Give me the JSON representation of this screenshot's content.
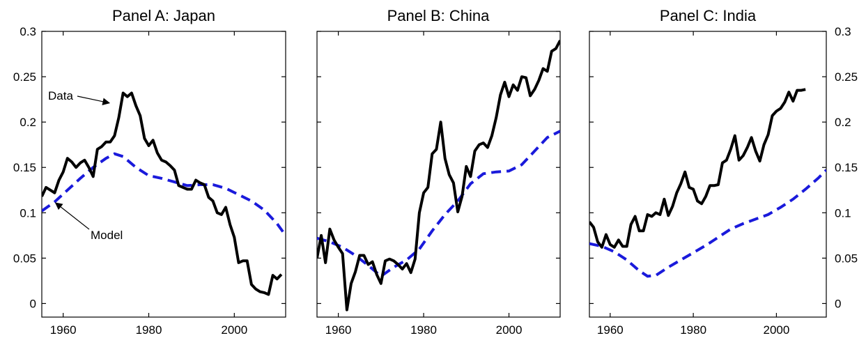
{
  "chart_data": [
    {
      "type": "line",
      "title": "Panel A: Japan",
      "xlim": [
        1955,
        2012
      ],
      "ylim": [
        -0.015,
        0.3
      ],
      "x_ticks": [
        1960,
        1980,
        2000
      ],
      "x_tick_labels": [
        "1960",
        "1980",
        "2000"
      ],
      "y_ticks": [
        0,
        0.05,
        0.1,
        0.15,
        0.2,
        0.25,
        0.3
      ],
      "y_tick_labels": [
        "0",
        "0.05",
        "0.1",
        "0.15",
        "0.2",
        "0.25",
        "0.3"
      ],
      "y_axis_side": "left",
      "annotations": [
        {
          "text": "Data",
          "series": "data"
        },
        {
          "text": "Model",
          "series": "model"
        }
      ],
      "series": [
        {
          "key": "data",
          "color": "#000000",
          "style": "solid",
          "x": [
            1955,
            1956,
            1957,
            1958,
            1959,
            1960,
            1961,
            1962,
            1963,
            1964,
            1965,
            1966,
            1967,
            1968,
            1969,
            1970,
            1971,
            1972,
            1973,
            1974,
            1975,
            1976,
            1977,
            1978,
            1979,
            1980,
            1981,
            1982,
            1983,
            1984,
            1985,
            1986,
            1987,
            1988,
            1989,
            1990,
            1991,
            1992,
            1993,
            1994,
            1995,
            1996,
            1997,
            1998,
            1999,
            2000,
            2001,
            2002,
            2003,
            2004,
            2005,
            2006,
            2007,
            2008,
            2009,
            2010,
            2011
          ],
          "y": [
            0.118,
            0.128,
            0.125,
            0.122,
            0.136,
            0.145,
            0.16,
            0.156,
            0.15,
            0.155,
            0.158,
            0.15,
            0.14,
            0.17,
            0.173,
            0.178,
            0.178,
            0.185,
            0.205,
            0.232,
            0.228,
            0.232,
            0.218,
            0.207,
            0.182,
            0.174,
            0.18,
            0.166,
            0.158,
            0.156,
            0.152,
            0.147,
            0.13,
            0.128,
            0.126,
            0.126,
            0.136,
            0.133,
            0.131,
            0.117,
            0.113,
            0.1,
            0.098,
            0.106,
            0.087,
            0.073,
            0.045,
            0.047,
            0.047,
            0.021,
            0.016,
            0.013,
            0.012,
            0.01,
            0.031,
            0.027,
            0.032
          ]
        },
        {
          "key": "model",
          "color": "#1a1adb",
          "style": "dashed",
          "x": [
            1955,
            1958,
            1961,
            1964,
            1967,
            1970,
            1972,
            1974,
            1977,
            1980,
            1983,
            1986,
            1989,
            1992,
            1995,
            1998,
            2001,
            2004,
            2007,
            2010,
            2012
          ],
          "y": [
            0.102,
            0.112,
            0.125,
            0.138,
            0.15,
            0.16,
            0.165,
            0.162,
            0.15,
            0.141,
            0.138,
            0.134,
            0.13,
            0.131,
            0.131,
            0.127,
            0.12,
            0.113,
            0.103,
            0.088,
            0.075
          ]
        }
      ]
    },
    {
      "type": "line",
      "title": "Panel B: China",
      "xlim": [
        1955,
        2012
      ],
      "ylim": [
        -0.015,
        0.3
      ],
      "x_ticks": [
        1960,
        1980,
        2000
      ],
      "x_tick_labels": [
        "1960",
        "1980",
        "2000"
      ],
      "y_ticks": [
        0,
        0.05,
        0.1,
        0.15,
        0.2,
        0.25,
        0.3
      ],
      "y_tick_labels": [],
      "y_axis_side": "none",
      "series": [
        {
          "key": "data",
          "color": "#000000",
          "style": "solid",
          "x": [
            1955,
            1956,
            1957,
            1958,
            1959,
            1960,
            1961,
            1962,
            1963,
            1964,
            1965,
            1966,
            1967,
            1968,
            1969,
            1970,
            1971,
            1972,
            1973,
            1974,
            1975,
            1976,
            1977,
            1978,
            1979,
            1980,
            1981,
            1982,
            1983,
            1984,
            1985,
            1986,
            1987,
            1988,
            1989,
            1990,
            1991,
            1992,
            1993,
            1994,
            1995,
            1996,
            1997,
            1998,
            1999,
            2000,
            2001,
            2002,
            2003,
            2004,
            2005,
            2006,
            2007,
            2008,
            2009,
            2010,
            2011,
            2012
          ],
          "y": [
            0.05,
            0.075,
            0.045,
            0.082,
            0.07,
            0.062,
            0.055,
            -0.007,
            0.022,
            0.035,
            0.053,
            0.053,
            0.043,
            0.046,
            0.032,
            0.022,
            0.047,
            0.049,
            0.047,
            0.043,
            0.038,
            0.044,
            0.034,
            0.049,
            0.1,
            0.122,
            0.128,
            0.165,
            0.17,
            0.2,
            0.16,
            0.142,
            0.133,
            0.101,
            0.118,
            0.151,
            0.14,
            0.168,
            0.175,
            0.177,
            0.172,
            0.185,
            0.205,
            0.23,
            0.244,
            0.228,
            0.241,
            0.235,
            0.25,
            0.249,
            0.229,
            0.236,
            0.246,
            0.259,
            0.256,
            0.278,
            0.281,
            0.29
          ]
        },
        {
          "key": "model",
          "color": "#1a1adb",
          "style": "dashed",
          "x": [
            1955,
            1958,
            1961,
            1964,
            1967,
            1970,
            1973,
            1976,
            1979,
            1982,
            1985,
            1988,
            1991,
            1994,
            1997,
            2000,
            2003,
            2006,
            2009,
            2012
          ],
          "y": [
            0.072,
            0.068,
            0.062,
            0.053,
            0.042,
            0.03,
            0.04,
            0.048,
            0.06,
            0.08,
            0.098,
            0.113,
            0.132,
            0.143,
            0.145,
            0.146,
            0.153,
            0.168,
            0.183,
            0.19
          ]
        }
      ]
    },
    {
      "type": "line",
      "title": "Panel C: India",
      "xlim": [
        1955,
        2012
      ],
      "ylim": [
        -0.015,
        0.3
      ],
      "x_ticks": [
        1960,
        1980,
        2000
      ],
      "x_tick_labels": [
        "1960",
        "1980",
        "2000"
      ],
      "y_ticks": [
        0,
        0.05,
        0.1,
        0.15,
        0.2,
        0.25,
        0.3
      ],
      "y_tick_labels": [
        "0",
        "0.05",
        "0.1",
        "0.15",
        "0.2",
        "0.25",
        "0.3"
      ],
      "y_axis_side": "right",
      "series": [
        {
          "key": "data",
          "color": "#000000",
          "style": "solid",
          "x": [
            1955,
            1956,
            1957,
            1958,
            1959,
            1960,
            1961,
            1962,
            1963,
            1964,
            1965,
            1966,
            1967,
            1968,
            1969,
            1970,
            1971,
            1972,
            1973,
            1974,
            1975,
            1976,
            1977,
            1978,
            1979,
            1980,
            1981,
            1982,
            1983,
            1984,
            1985,
            1986,
            1987,
            1988,
            1989,
            1990,
            1991,
            1992,
            1993,
            1994,
            1995,
            1996,
            1997,
            1998,
            1999,
            2000,
            2001,
            2002,
            2003,
            2004,
            2005,
            2006,
            2007
          ],
          "y": [
            0.09,
            0.084,
            0.068,
            0.062,
            0.076,
            0.065,
            0.062,
            0.07,
            0.063,
            0.063,
            0.087,
            0.096,
            0.08,
            0.08,
            0.098,
            0.096,
            0.1,
            0.098,
            0.115,
            0.097,
            0.107,
            0.122,
            0.132,
            0.145,
            0.128,
            0.126,
            0.113,
            0.11,
            0.118,
            0.13,
            0.13,
            0.131,
            0.155,
            0.158,
            0.17,
            0.185,
            0.158,
            0.163,
            0.172,
            0.183,
            0.168,
            0.157,
            0.175,
            0.186,
            0.207,
            0.212,
            0.215,
            0.222,
            0.233,
            0.223,
            0.235,
            0.235,
            0.236
          ]
        },
        {
          "key": "model",
          "color": "#1a1adb",
          "style": "dashed",
          "x": [
            1955,
            1958,
            1961,
            1964,
            1967,
            1969,
            1971,
            1974,
            1977,
            1980,
            1983,
            1986,
            1989,
            1992,
            1995,
            1998,
            2001,
            2004,
            2007,
            2010,
            2012
          ],
          "y": [
            0.066,
            0.063,
            0.057,
            0.048,
            0.036,
            0.03,
            0.031,
            0.04,
            0.048,
            0.056,
            0.064,
            0.073,
            0.082,
            0.088,
            0.093,
            0.098,
            0.106,
            0.115,
            0.126,
            0.138,
            0.147
          ]
        }
      ]
    }
  ]
}
